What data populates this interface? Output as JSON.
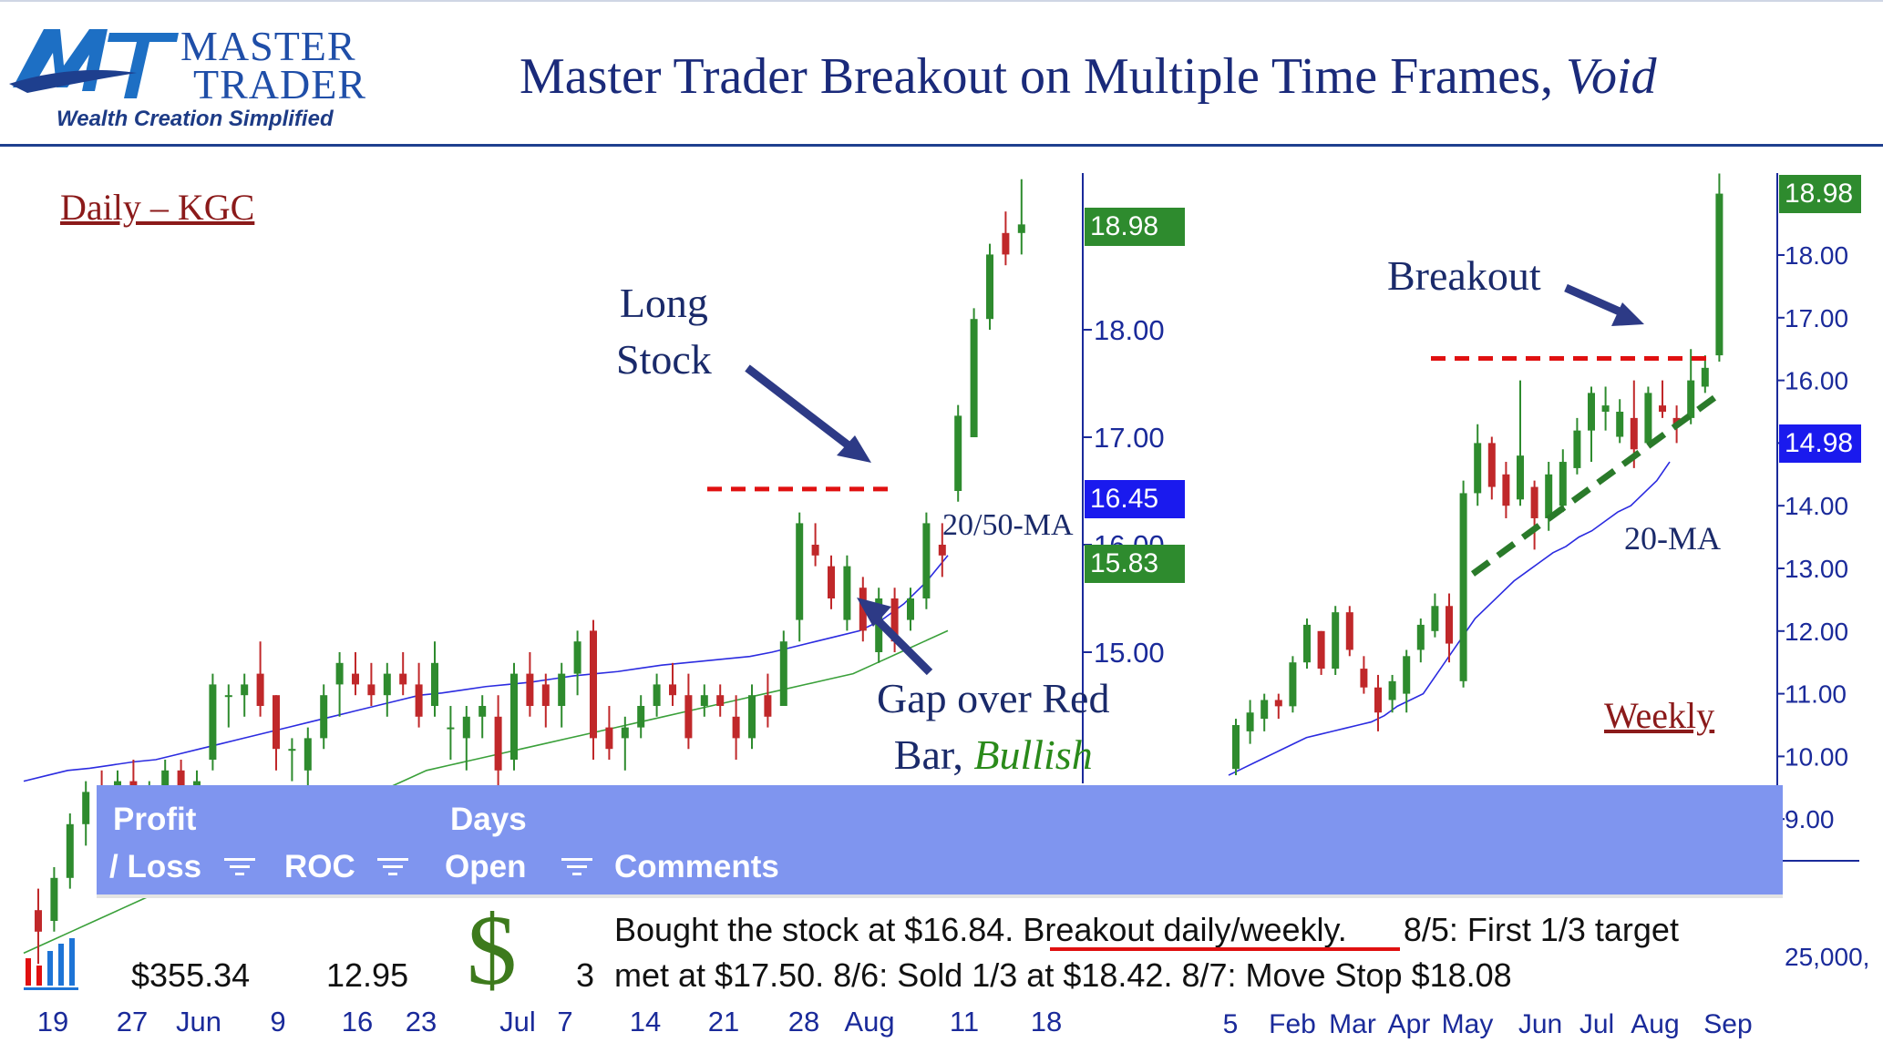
{
  "header": {
    "logo_master": "MASTER",
    "logo_trader": "TRADER",
    "logo_tagline": "Wealth Creation Simplified",
    "title_main": "Master Trader Breakout on Multiple Time Frames, ",
    "title_italic": "Void"
  },
  "annotations": {
    "daily_label": "Daily – KGC",
    "weekly_label": "Weekly",
    "long_stock_line1": "Long",
    "long_stock_line2": "Stock",
    "ma_label": "20/50-MA",
    "gap_line1": "Gap over Red",
    "gap_line2_a": "Bar, ",
    "gap_line2_b": "Bullish",
    "breakout": "Breakout",
    "ma20": "20-MA"
  },
  "table": {
    "headers": {
      "profit_line1": "Profit",
      "profit_line2": "/ Loss",
      "roc": "ROC",
      "days_line1": "Days",
      "days_line2": "Open",
      "comments": "Comments"
    },
    "row": {
      "profit": "$355.34",
      "roc": "12.95",
      "days": "3",
      "comment_line1_a": "Bought the stock at $16.84. ",
      "comment_line1_b": "Breakout daily/weekly.",
      "comment_line1_c": "8/5:  First 1/3 target",
      "comment_line2": "met at $17.50.  8/6:  Sold 1/3 at $18.42.  8/7:  Move Stop $18.08"
    },
    "icons": [
      "bar-chart-icon",
      "dollar-icon",
      "filter-icon"
    ]
  },
  "chart_data": [
    {
      "type": "candlestick",
      "name": "Daily – KGC",
      "y_axis_ticks": [
        "15.00",
        "16.00",
        "17.00",
        "18.00"
      ],
      "price_tags": [
        {
          "value": "18.98",
          "color": "#2e8b2e"
        },
        {
          "value": "16.45",
          "color": "#1a1aee"
        },
        {
          "value": "15.83",
          "color": "#2e8b2e"
        }
      ],
      "x_tick_labels": [
        "19",
        "27",
        "Jun",
        "9",
        "16",
        "23",
        "Jul",
        "7",
        "14",
        "21",
        "28",
        "Aug",
        "11",
        "18"
      ],
      "breakout_level": 16.45,
      "candles": [
        {
          "o": 12.6,
          "h": 12.8,
          "l": 12.1,
          "c": 12.4
        },
        {
          "o": 12.5,
          "h": 13.0,
          "l": 12.4,
          "c": 12.9
        },
        {
          "o": 12.9,
          "h": 13.5,
          "l": 12.8,
          "c": 13.4
        },
        {
          "o": 13.4,
          "h": 13.8,
          "l": 13.2,
          "c": 13.7
        },
        {
          "o": 13.7,
          "h": 13.9,
          "l": 13.4,
          "c": 13.5
        },
        {
          "o": 13.6,
          "h": 13.9,
          "l": 13.3,
          "c": 13.8
        },
        {
          "o": 13.8,
          "h": 14.0,
          "l": 13.5,
          "c": 13.6
        },
        {
          "o": 13.5,
          "h": 13.8,
          "l": 13.3,
          "c": 13.7
        },
        {
          "o": 13.7,
          "h": 14.0,
          "l": 13.5,
          "c": 13.9
        },
        {
          "o": 13.9,
          "h": 14.0,
          "l": 13.6,
          "c": 13.7
        },
        {
          "o": 13.6,
          "h": 13.9,
          "l": 13.4,
          "c": 13.8
        },
        {
          "o": 14.0,
          "h": 14.8,
          "l": 13.9,
          "c": 14.7
        },
        {
          "o": 14.6,
          "h": 14.7,
          "l": 14.3,
          "c": 14.6
        },
        {
          "o": 14.6,
          "h": 14.8,
          "l": 14.4,
          "c": 14.7
        },
        {
          "o": 14.8,
          "h": 15.1,
          "l": 14.4,
          "c": 14.5
        },
        {
          "o": 14.6,
          "h": 14.6,
          "l": 13.9,
          "c": 14.1
        },
        {
          "o": 14.1,
          "h": 14.2,
          "l": 13.8,
          "c": 14.1
        },
        {
          "o": 13.9,
          "h": 14.3,
          "l": 13.6,
          "c": 14.2
        },
        {
          "o": 14.2,
          "h": 14.7,
          "l": 14.1,
          "c": 14.6
        },
        {
          "o": 14.7,
          "h": 15.0,
          "l": 14.4,
          "c": 14.9
        },
        {
          "o": 14.8,
          "h": 15.0,
          "l": 14.6,
          "c": 14.7
        },
        {
          "o": 14.7,
          "h": 14.9,
          "l": 14.5,
          "c": 14.6
        },
        {
          "o": 14.6,
          "h": 14.9,
          "l": 14.4,
          "c": 14.8
        },
        {
          "o": 14.8,
          "h": 15.0,
          "l": 14.6,
          "c": 14.7
        },
        {
          "o": 14.7,
          "h": 14.9,
          "l": 14.3,
          "c": 14.4
        },
        {
          "o": 14.5,
          "h": 15.1,
          "l": 14.4,
          "c": 14.9
        },
        {
          "o": 14.3,
          "h": 14.5,
          "l": 14.0,
          "c": 14.3
        },
        {
          "o": 14.2,
          "h": 14.5,
          "l": 13.9,
          "c": 14.4
        },
        {
          "o": 14.4,
          "h": 14.6,
          "l": 14.2,
          "c": 14.5
        },
        {
          "o": 14.4,
          "h": 14.6,
          "l": 13.7,
          "c": 13.9
        },
        {
          "o": 14.0,
          "h": 14.9,
          "l": 13.9,
          "c": 14.8
        },
        {
          "o": 14.8,
          "h": 15.0,
          "l": 14.4,
          "c": 14.5
        },
        {
          "o": 14.7,
          "h": 14.8,
          "l": 14.3,
          "c": 14.5
        },
        {
          "o": 14.5,
          "h": 14.9,
          "l": 14.3,
          "c": 14.8
        },
        {
          "o": 14.8,
          "h": 15.2,
          "l": 14.6,
          "c": 15.1
        },
        {
          "o": 15.2,
          "h": 15.3,
          "l": 14.0,
          "c": 14.2
        },
        {
          "o": 14.3,
          "h": 14.5,
          "l": 14.0,
          "c": 14.1
        },
        {
          "o": 14.2,
          "h": 14.4,
          "l": 13.9,
          "c": 14.3
        },
        {
          "o": 14.3,
          "h": 14.6,
          "l": 14.2,
          "c": 14.5
        },
        {
          "o": 14.5,
          "h": 14.8,
          "l": 14.4,
          "c": 14.7
        },
        {
          "o": 14.7,
          "h": 14.9,
          "l": 14.5,
          "c": 14.6
        },
        {
          "o": 14.6,
          "h": 14.8,
          "l": 14.1,
          "c": 14.2
        },
        {
          "o": 14.5,
          "h": 14.7,
          "l": 14.4,
          "c": 14.6
        },
        {
          "o": 14.6,
          "h": 14.7,
          "l": 14.4,
          "c": 14.5
        },
        {
          "o": 14.4,
          "h": 14.6,
          "l": 14.0,
          "c": 14.2
        },
        {
          "o": 14.2,
          "h": 14.7,
          "l": 14.1,
          "c": 14.6
        },
        {
          "o": 14.6,
          "h": 14.8,
          "l": 14.3,
          "c": 14.4
        },
        {
          "o": 14.5,
          "h": 15.2,
          "l": 14.5,
          "c": 15.1
        },
        {
          "o": 15.3,
          "h": 16.3,
          "l": 15.1,
          "c": 16.2
        },
        {
          "o": 16.0,
          "h": 16.2,
          "l": 15.8,
          "c": 15.9
        },
        {
          "o": 15.8,
          "h": 15.9,
          "l": 15.4,
          "c": 15.5
        },
        {
          "o": 15.3,
          "h": 15.9,
          "l": 15.2,
          "c": 15.8
        },
        {
          "o": 15.6,
          "h": 15.7,
          "l": 15.1,
          "c": 15.2
        },
        {
          "o": 15.0,
          "h": 15.6,
          "l": 14.9,
          "c": 15.5
        },
        {
          "o": 15.5,
          "h": 15.6,
          "l": 15.0,
          "c": 15.1
        },
        {
          "o": 15.3,
          "h": 15.6,
          "l": 15.2,
          "c": 15.5
        },
        {
          "o": 15.5,
          "h": 16.3,
          "l": 15.4,
          "c": 16.2
        },
        {
          "o": 16.0,
          "h": 16.2,
          "l": 15.7,
          "c": 15.9
        },
        {
          "o": 16.5,
          "h": 17.3,
          "l": 16.4,
          "c": 17.2
        },
        {
          "o": 17.0,
          "h": 18.2,
          "l": 17.0,
          "c": 18.1
        },
        {
          "o": 18.1,
          "h": 18.8,
          "l": 18.0,
          "c": 18.7
        },
        {
          "o": 18.9,
          "h": 19.1,
          "l": 18.6,
          "c": 18.7
        },
        {
          "o": 18.9,
          "h": 19.4,
          "l": 18.7,
          "c": 18.98
        }
      ],
      "ma20": [
        13.8,
        13.85,
        13.9,
        13.92,
        13.95,
        13.98,
        14.0,
        14.05,
        14.1,
        14.15,
        14.2,
        14.25,
        14.3,
        14.35,
        14.4,
        14.45,
        14.5,
        14.55,
        14.6,
        14.62,
        14.65,
        14.68,
        14.7,
        14.72,
        14.75,
        14.78,
        14.8,
        14.82,
        14.85,
        14.88,
        14.9,
        14.92,
        14.94,
        14.96,
        15.0,
        15.05,
        15.1,
        15.15,
        15.2,
        15.3,
        15.45,
        15.65,
        15.9
      ],
      "ma50": [
        12.2,
        12.3,
        12.4,
        12.5,
        12.6,
        12.7,
        12.8,
        12.9,
        13.0,
        13.1,
        13.2,
        13.3,
        13.4,
        13.5,
        13.6,
        13.7,
        13.8,
        13.9,
        13.95,
        14.0,
        14.05,
        14.1,
        14.15,
        14.2,
        14.25,
        14.3,
        14.35,
        14.4,
        14.45,
        14.5,
        14.55,
        14.6,
        14.65,
        14.7,
        14.75,
        14.8,
        14.9,
        15.0,
        15.1,
        15.2
      ]
    },
    {
      "type": "candlestick",
      "name": "Weekly",
      "y_axis_ticks": [
        "9.00",
        "10.00",
        "11.00",
        "12.00",
        "13.00",
        "14.00",
        "15.00",
        "16.00",
        "17.00",
        "18.00"
      ],
      "price_tags": [
        {
          "value": "18.98",
          "color": "#2e8b2e"
        },
        {
          "value": "14.98",
          "color": "#1a1aee"
        }
      ],
      "volume_label": "25,000,",
      "x_tick_labels": [
        "5",
        "Feb",
        "Mar",
        "Apr",
        "May",
        "Jun",
        "Jul",
        "Aug",
        "Sep"
      ],
      "breakout_level": 16.35,
      "candles": [
        {
          "o": 9.8,
          "h": 10.6,
          "l": 9.7,
          "c": 10.5
        },
        {
          "o": 10.4,
          "h": 10.9,
          "l": 10.2,
          "c": 10.7
        },
        {
          "o": 10.6,
          "h": 11.0,
          "l": 10.4,
          "c": 10.9
        },
        {
          "o": 10.9,
          "h": 11.0,
          "l": 10.6,
          "c": 10.8
        },
        {
          "o": 10.8,
          "h": 11.6,
          "l": 10.7,
          "c": 11.5
        },
        {
          "o": 11.5,
          "h": 12.2,
          "l": 11.4,
          "c": 12.1
        },
        {
          "o": 12.0,
          "h": 12.0,
          "l": 11.3,
          "c": 11.4
        },
        {
          "o": 11.4,
          "h": 12.4,
          "l": 11.3,
          "c": 12.3
        },
        {
          "o": 12.3,
          "h": 12.4,
          "l": 11.6,
          "c": 11.7
        },
        {
          "o": 11.4,
          "h": 11.6,
          "l": 11.0,
          "c": 11.1
        },
        {
          "o": 11.1,
          "h": 11.3,
          "l": 10.4,
          "c": 10.7
        },
        {
          "o": 10.9,
          "h": 11.3,
          "l": 10.7,
          "c": 11.2
        },
        {
          "o": 11.0,
          "h": 11.7,
          "l": 10.7,
          "c": 11.6
        },
        {
          "o": 11.7,
          "h": 12.2,
          "l": 11.5,
          "c": 12.1
        },
        {
          "o": 12.0,
          "h": 12.6,
          "l": 11.9,
          "c": 12.4
        },
        {
          "o": 12.4,
          "h": 12.6,
          "l": 11.5,
          "c": 11.8
        },
        {
          "o": 11.2,
          "h": 14.4,
          "l": 11.1,
          "c": 14.2
        },
        {
          "o": 14.2,
          "h": 15.3,
          "l": 14.0,
          "c": 15.0
        },
        {
          "o": 15.0,
          "h": 15.1,
          "l": 14.1,
          "c": 14.3
        },
        {
          "o": 14.5,
          "h": 14.7,
          "l": 13.8,
          "c": 14.0
        },
        {
          "o": 14.1,
          "h": 16.0,
          "l": 14.0,
          "c": 14.8
        },
        {
          "o": 14.3,
          "h": 14.4,
          "l": 13.3,
          "c": 13.8
        },
        {
          "o": 13.8,
          "h": 14.7,
          "l": 13.6,
          "c": 14.5
        },
        {
          "o": 14.0,
          "h": 14.9,
          "l": 13.9,
          "c": 14.7
        },
        {
          "o": 14.6,
          "h": 15.4,
          "l": 14.5,
          "c": 15.2
        },
        {
          "o": 15.2,
          "h": 15.9,
          "l": 14.7,
          "c": 15.8
        },
        {
          "o": 15.5,
          "h": 15.9,
          "l": 15.2,
          "c": 15.6
        },
        {
          "o": 15.1,
          "h": 15.7,
          "l": 15.0,
          "c": 15.5
        },
        {
          "o": 15.4,
          "h": 16.0,
          "l": 14.6,
          "c": 14.9
        },
        {
          "o": 15.0,
          "h": 15.9,
          "l": 15.0,
          "c": 15.8
        },
        {
          "o": 15.6,
          "h": 16.0,
          "l": 15.4,
          "c": 15.5
        },
        {
          "o": 15.4,
          "h": 15.6,
          "l": 15.0,
          "c": 15.3
        },
        {
          "o": 15.4,
          "h": 16.5,
          "l": 15.3,
          "c": 16.0
        },
        {
          "o": 15.9,
          "h": 16.4,
          "l": 15.8,
          "c": 16.2
        },
        {
          "o": 16.4,
          "h": 19.3,
          "l": 16.3,
          "c": 18.98
        }
      ],
      "ma20": [
        9.7,
        9.8,
        9.9,
        10.0,
        10.1,
        10.2,
        10.3,
        10.35,
        10.4,
        10.45,
        10.5,
        10.55,
        10.65,
        10.8,
        10.9,
        11.0,
        11.3,
        11.6,
        11.9,
        12.2,
        12.4,
        12.6,
        12.8,
        12.95,
        13.1,
        13.25,
        13.35,
        13.5,
        13.6,
        13.75,
        13.9,
        14.0,
        14.2,
        14.4,
        14.7
      ]
    }
  ]
}
